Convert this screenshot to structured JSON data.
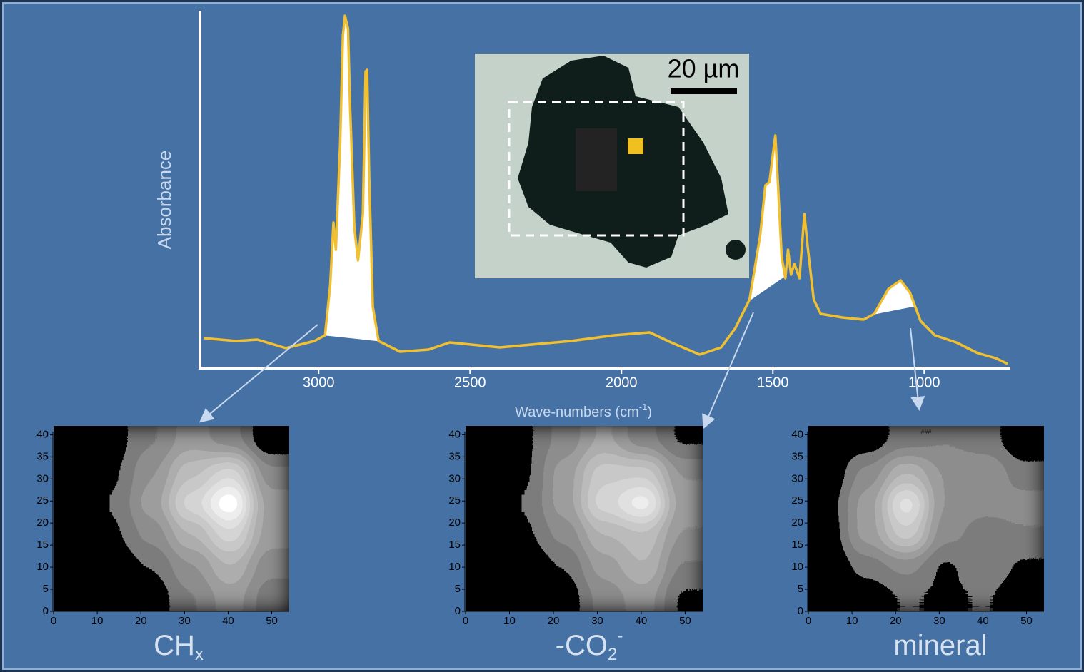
{
  "chart_data": [
    {
      "type": "line",
      "ylabel": "Absorbance",
      "xlabel": "Wave-numbers (cm",
      "xlabel_sup": "-1",
      "xlabel_end": ")",
      "xlim": [
        3385,
        720
      ],
      "xticks": [
        3000,
        2500,
        2000,
        1500,
        1000
      ],
      "ylim": [
        0,
        1
      ],
      "x": [
        3379,
        3273,
        3203,
        3108,
        3014,
        2979,
        2962,
        2951,
        2943,
        2929,
        2920,
        2913,
        2903,
        2896,
        2882,
        2870,
        2854,
        2845,
        2840,
        2833,
        2821,
        2802,
        2731,
        2637,
        2567,
        2402,
        2166,
        2025,
        1907,
        1836,
        1742,
        1671,
        1624,
        1577,
        1542,
        1525,
        1511,
        1501,
        1492,
        1483,
        1471,
        1459,
        1450,
        1440,
        1429,
        1412,
        1396,
        1384,
        1365,
        1342,
        1271,
        1200,
        1165,
        1118,
        1078,
        1047,
        1012,
        965,
        894,
        823,
        764,
        724
      ],
      "series": [
        {
          "color": "#f0c030",
          "values": [
            0.082,
            0.074,
            0.078,
            0.054,
            0.074,
            0.09,
            0.23,
            0.406,
            0.33,
            0.63,
            0.93,
            0.986,
            0.95,
            0.73,
            0.39,
            0.3,
            0.43,
            0.83,
            0.834,
            0.53,
            0.17,
            0.074,
            0.044,
            0.05,
            0.07,
            0.056,
            0.074,
            0.09,
            0.098,
            0.07,
            0.036,
            0.056,
            0.11,
            0.19,
            0.37,
            0.51,
            0.52,
            0.59,
            0.65,
            0.51,
            0.31,
            0.25,
            0.33,
            0.26,
            0.29,
            0.25,
            0.43,
            0.33,
            0.19,
            0.15,
            0.14,
            0.134,
            0.15,
            0.22,
            0.244,
            0.21,
            0.13,
            0.09,
            0.07,
            0.04,
            0.026,
            0.01
          ]
        }
      ],
      "integration_ranges": [
        [
          2980,
          2800
        ],
        [
          1580,
          1460
        ],
        [
          1170,
          1030
        ]
      ],
      "micrograph": {
        "scale_label": "20 µm"
      }
    },
    {
      "type": "contour",
      "label": "CH",
      "label_sub": "x",
      "xlim": [
        0,
        54
      ],
      "ylim": [
        0,
        42
      ],
      "xticks": [
        0,
        10,
        20,
        30,
        40,
        50
      ],
      "yticks": [
        0,
        5,
        10,
        15,
        20,
        25,
        30,
        35,
        40
      ],
      "xbins": [
        0,
        9,
        18,
        27,
        36,
        45,
        54
      ],
      "ybins": [
        0,
        7,
        14,
        21,
        28,
        35,
        42
      ],
      "z": [
        [
          0,
          0,
          0.2,
          0.45,
          0.6,
          0.4
        ],
        [
          0,
          0.15,
          0.35,
          0.55,
          0.7,
          0.5
        ],
        [
          0.15,
          0.3,
          0.5,
          0.7,
          0.85,
          0.6
        ],
        [
          0.15,
          0.35,
          0.6,
          0.85,
          1.0,
          0.6
        ],
        [
          0.1,
          0.3,
          0.55,
          0.75,
          0.85,
          0.5
        ],
        [
          0.05,
          0.25,
          0.45,
          0.6,
          0.5,
          0.1
        ]
      ]
    },
    {
      "type": "contour",
      "label": "-CO",
      "label_sub": "2",
      "label_sup": "-",
      "xlim": [
        0,
        54
      ],
      "ylim": [
        0,
        42
      ],
      "xticks": [
        0,
        10,
        20,
        30,
        40,
        50
      ],
      "yticks": [
        0,
        5,
        10,
        15,
        20,
        25,
        30,
        35,
        40
      ],
      "xbins": [
        0,
        9,
        18,
        27,
        36,
        45,
        54
      ],
      "ybins": [
        0,
        7,
        14,
        21,
        28,
        35,
        42
      ],
      "z": [
        [
          0,
          0,
          0.2,
          0.5,
          0.6,
          0.3
        ],
        [
          0,
          0.1,
          0.35,
          0.6,
          0.7,
          0.45
        ],
        [
          0.15,
          0.3,
          0.5,
          0.7,
          0.75,
          0.55
        ],
        [
          0.2,
          0.35,
          0.6,
          0.85,
          0.95,
          0.6
        ],
        [
          0.1,
          0.3,
          0.6,
          0.8,
          0.8,
          0.55
        ],
        [
          0.05,
          0.3,
          0.5,
          0.65,
          0.5,
          0.3
        ]
      ]
    },
    {
      "type": "contour",
      "label": "mineral",
      "annotation": "###",
      "xlim": [
        0,
        54
      ],
      "ylim": [
        0,
        42
      ],
      "xticks": [
        0,
        10,
        20,
        30,
        40,
        50
      ],
      "yticks": [
        0,
        5,
        10,
        15,
        20,
        25,
        30,
        35,
        40
      ],
      "xbins": [
        0,
        9,
        18,
        27,
        36,
        45,
        54
      ],
      "ybins": [
        0,
        7,
        14,
        21,
        28,
        35,
        42
      ],
      "z": [
        [
          0,
          0.2,
          0.35,
          0.3,
          0.35,
          0.1
        ],
        [
          0.1,
          0.4,
          0.5,
          0.3,
          0.45,
          0.3
        ],
        [
          0.2,
          0.6,
          0.8,
          0.5,
          0.4,
          0.45
        ],
        [
          0.25,
          0.6,
          0.9,
          0.55,
          0.5,
          0.5
        ],
        [
          0.1,
          0.5,
          0.7,
          0.55,
          0.55,
          0.4
        ],
        [
          0,
          0.2,
          0.4,
          0.45,
          0.4,
          0.1
        ]
      ]
    }
  ]
}
